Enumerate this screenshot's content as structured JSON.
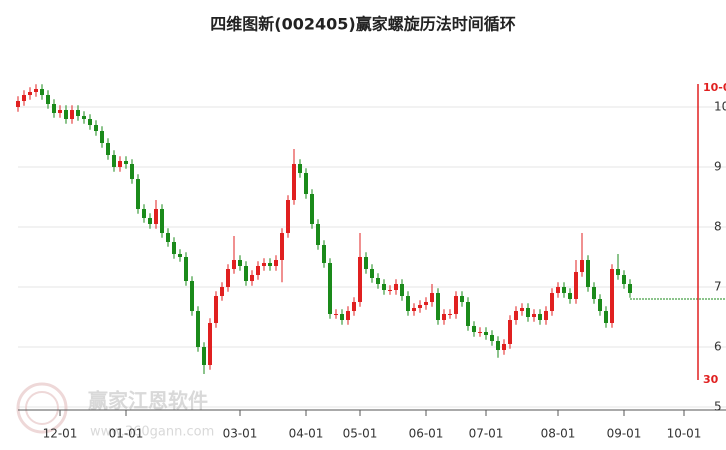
{
  "chart_data": {
    "type": "candlestick",
    "title": "四维图新(002405)赢家螺旋历法时间循环",
    "open": [
      10.0,
      10.1,
      10.2,
      10.25,
      10.3,
      10.2,
      10.05,
      9.9,
      9.95,
      9.8,
      9.95,
      9.85,
      9.8,
      9.7,
      9.6,
      9.4,
      9.2,
      9.0,
      9.1,
      9.05,
      8.8,
      8.3,
      8.15,
      8.05,
      8.3,
      7.9,
      7.75,
      7.55,
      7.5,
      7.1,
      6.6,
      6.0,
      5.7,
      6.4,
      6.85,
      7.0,
      7.3,
      7.45,
      7.35,
      7.1,
      7.2,
      7.35,
      7.4,
      7.35,
      7.45,
      7.9,
      8.45,
      9.05,
      8.9,
      8.55,
      8.05,
      7.7,
      7.4,
      6.55,
      6.55,
      6.45,
      6.6,
      6.75,
      7.5,
      7.3,
      7.15,
      7.05,
      6.95,
      6.95,
      7.05,
      6.85,
      6.6,
      6.65,
      6.7,
      6.75,
      6.9,
      6.45,
      6.55,
      6.55,
      6.85,
      6.75,
      6.35,
      6.25,
      6.25,
      6.2,
      6.1,
      5.95,
      6.05,
      6.45,
      6.6,
      6.65,
      6.5,
      6.55,
      6.45,
      6.6,
      6.9,
      7.0,
      6.9,
      6.8,
      7.25,
      7.45,
      7.0,
      6.8,
      6.6,
      6.4,
      7.3,
      7.2,
      7.05
    ],
    "high": [
      10.18,
      10.28,
      10.33,
      10.38,
      10.38,
      10.28,
      10.13,
      10.03,
      10.03,
      10.03,
      10.03,
      9.93,
      9.88,
      9.78,
      9.68,
      9.48,
      9.28,
      9.18,
      9.18,
      9.13,
      8.88,
      8.38,
      8.23,
      8.45,
      8.38,
      7.98,
      7.83,
      7.63,
      7.58,
      7.18,
      6.68,
      6.08,
      6.48,
      6.93,
      7.08,
      7.38,
      7.85,
      7.53,
      7.43,
      7.28,
      7.43,
      7.48,
      7.48,
      7.53,
      7.98,
      8.53,
      9.3,
      9.13,
      8.98,
      8.63,
      8.13,
      7.78,
      7.48,
      6.63,
      6.63,
      6.68,
      6.83,
      7.9,
      7.58,
      7.38,
      7.23,
      7.13,
      7.03,
      7.13,
      7.13,
      6.93,
      6.73,
      6.78,
      6.83,
      7.05,
      6.98,
      6.63,
      6.63,
      6.93,
      6.93,
      6.83,
      6.43,
      6.33,
      6.33,
      6.28,
      6.18,
      6.13,
      6.53,
      6.68,
      6.73,
      6.73,
      6.63,
      6.63,
      6.68,
      6.98,
      7.08,
      7.08,
      6.98,
      7.45,
      7.9,
      7.53,
      7.08,
      6.88,
      6.68,
      7.38,
      7.55,
      7.28,
      7.13
    ],
    "low": [
      9.92,
      10.02,
      10.12,
      10.17,
      10.12,
      9.97,
      9.82,
      9.82,
      9.72,
      9.72,
      9.77,
      9.72,
      9.62,
      9.52,
      9.32,
      9.12,
      8.92,
      8.92,
      8.97,
      8.72,
      8.22,
      8.07,
      7.97,
      7.97,
      7.82,
      7.67,
      7.47,
      7.42,
      7.02,
      6.52,
      5.92,
      5.55,
      5.62,
      6.32,
      6.77,
      6.92,
      7.22,
      7.27,
      7.02,
      7.02,
      7.12,
      7.27,
      7.27,
      7.27,
      7.08,
      7.82,
      8.37,
      8.82,
      8.47,
      7.97,
      7.62,
      7.32,
      6.47,
      6.47,
      6.37,
      6.37,
      6.52,
      6.67,
      7.22,
      7.07,
      6.97,
      6.87,
      6.87,
      6.87,
      6.77,
      6.52,
      6.52,
      6.57,
      6.62,
      6.67,
      6.37,
      6.37,
      6.47,
      6.47,
      6.67,
      6.27,
      6.17,
      6.17,
      6.12,
      6.02,
      5.82,
      5.87,
      5.97,
      6.37,
      6.52,
      6.42,
      6.42,
      6.37,
      6.37,
      6.52,
      6.82,
      6.82,
      6.72,
      6.72,
      7.17,
      6.92,
      6.72,
      6.52,
      6.32,
      6.32,
      7.12,
      6.97,
      6.82
    ],
    "close": [
      10.1,
      10.2,
      10.25,
      10.3,
      10.2,
      10.05,
      9.9,
      9.95,
      9.8,
      9.95,
      9.85,
      9.8,
      9.7,
      9.6,
      9.4,
      9.2,
      9.0,
      9.1,
      9.05,
      8.8,
      8.3,
      8.15,
      8.05,
      8.3,
      7.9,
      7.75,
      7.55,
      7.5,
      7.1,
      6.6,
      6.0,
      5.7,
      6.4,
      6.85,
      7.0,
      7.3,
      7.45,
      7.35,
      7.1,
      7.2,
      7.35,
      7.4,
      7.35,
      7.45,
      7.9,
      8.45,
      9.05,
      8.9,
      8.55,
      8.05,
      7.7,
      7.4,
      6.55,
      6.55,
      6.45,
      6.6,
      6.75,
      7.5,
      7.3,
      7.15,
      7.05,
      6.95,
      6.95,
      7.05,
      6.85,
      6.6,
      6.65,
      6.7,
      6.75,
      6.9,
      6.45,
      6.55,
      6.55,
      6.85,
      6.75,
      6.35,
      6.25,
      6.25,
      6.2,
      6.1,
      5.95,
      6.05,
      6.45,
      6.6,
      6.65,
      6.5,
      6.55,
      6.45,
      6.6,
      6.9,
      7.0,
      6.9,
      6.8,
      7.25,
      7.45,
      7.0,
      6.8,
      6.6,
      6.4,
      7.3,
      7.2,
      7.05,
      6.9
    ],
    "up_color": "#e02020",
    "down_color": "#1a8a1a",
    "xlim": [
      -3,
      118
    ],
    "xticks": [
      {
        "value": 7,
        "label": "12-01"
      },
      {
        "value": 18,
        "label": "01-01"
      },
      {
        "value": 37,
        "label": "03-01"
      },
      {
        "value": 48,
        "label": "04-01"
      },
      {
        "value": 57,
        "label": "05-01"
      },
      {
        "value": 68,
        "label": "06-01"
      },
      {
        "value": 78,
        "label": "07-01"
      },
      {
        "value": 90,
        "label": "08-01"
      },
      {
        "value": 101,
        "label": "09-01"
      },
      {
        "value": 111,
        "label": "10-01"
      }
    ],
    "ylim": [
      4.95,
      10.45
    ],
    "yticks": [
      5,
      6,
      7,
      8,
      9,
      10
    ],
    "grid": true,
    "annotations": {
      "cycle_date": "10-0",
      "cycle_count": "30"
    },
    "watermark": {
      "brand": "赢家江恩软件",
      "url": "www.360gann.com"
    }
  }
}
